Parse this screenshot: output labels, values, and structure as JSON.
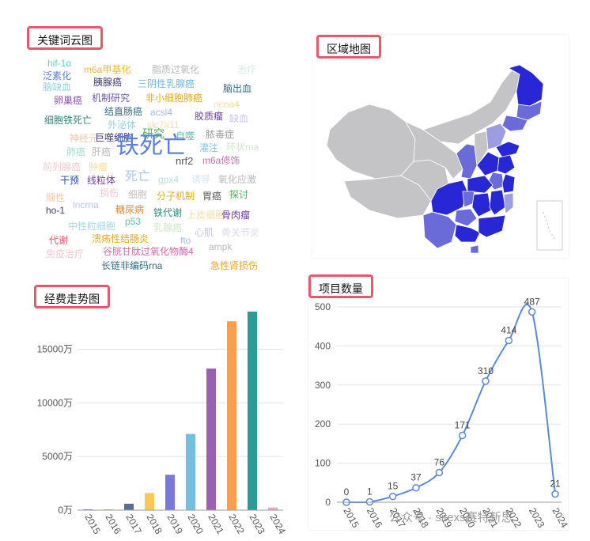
{
  "titles": {
    "wordcloud": "关键词云图",
    "map": "区域地图",
    "funding": "经费走势图",
    "projects": "项目数量"
  },
  "wordcloud": [
    {
      "text": "hif-1α",
      "color": "#5fd4b6",
      "size": 12
    },
    {
      "text": "m6a甲基化",
      "color": "#f2b533",
      "size": 12
    },
    {
      "text": "脂质过氧化",
      "color": "#b7b7b7",
      "size": 12
    },
    {
      "text": "治疗",
      "color": "#cfeee0",
      "size": 12
    },
    {
      "text": "泛素化",
      "color": "#5b7fd6",
      "size": 12
    },
    {
      "text": "胰腺癌",
      "color": "#3c3c6e",
      "size": 12
    },
    {
      "text": "脑缺血",
      "color": "#8fd3d9",
      "size": 12
    },
    {
      "text": "三阴性乳腺癌",
      "color": "#6bb8e6",
      "size": 12
    },
    {
      "text": "脑出血",
      "color": "#2d6f89",
      "size": 12
    },
    {
      "text": "卵巢癌",
      "color": "#8c4fb5",
      "size": 12
    },
    {
      "text": "机制研究",
      "color": "#6c5da6",
      "size": 12
    },
    {
      "text": "非小细胞肺癌",
      "color": "#e6a81e",
      "size": 12
    },
    {
      "text": "ncoa4",
      "color": "#f8dca0",
      "size": 12
    },
    {
      "text": "结直肠癌",
      "color": "#2f6f8a",
      "size": 12
    },
    {
      "text": "acsl4",
      "color": "#a5b8e8",
      "size": 12
    },
    {
      "text": "胶质瘤",
      "color": "#6b3fa0",
      "size": 12
    },
    {
      "text": "缺血",
      "color": "#c9c1ee",
      "size": 12
    },
    {
      "text": "细胞铁死亡",
      "color": "#2e8a7d",
      "size": 12
    },
    {
      "text": "外泌体",
      "color": "#8fd3e8",
      "size": 12
    },
    {
      "text": "slc7a11",
      "color": "#f7df9b",
      "size": 12
    },
    {
      "text": "神经元",
      "color": "#f7c5a8",
      "size": 12
    },
    {
      "text": "巨噬细胞",
      "color": "#3c3c6e",
      "size": 12
    },
    {
      "text": "研究",
      "color": "#4db35e",
      "size": 14
    },
    {
      "text": "自噬",
      "color": "#5bc0a7",
      "size": 12
    },
    {
      "text": "脓毒症",
      "color": "#9a9a9a",
      "size": 12
    },
    {
      "text": "肺癌",
      "color": "#9fded0",
      "size": 12
    },
    {
      "text": "肝癌",
      "color": "#b8b8b8",
      "size": 12
    },
    {
      "text": "铁死亡",
      "color": "#5b7fd6",
      "size": 30
    },
    {
      "text": "灌注",
      "color": "#7fc8e8",
      "size": 12
    },
    {
      "text": "环状rna",
      "color": "#cde7c6",
      "size": 12
    },
    {
      "text": "前列腺癌",
      "color": "#f5c8d0",
      "size": 12
    },
    {
      "text": "肿瘤",
      "color": "#f8dca0",
      "size": 12
    },
    {
      "text": "nrf2",
      "color": "#555555",
      "size": 13
    },
    {
      "text": "m6a修饰",
      "color": "#d46aa6",
      "size": 12
    },
    {
      "text": "干预",
      "color": "#2d4f9a",
      "size": 12
    },
    {
      "text": "线粒体",
      "color": "#6b3fa0",
      "size": 12
    },
    {
      "text": "死亡",
      "color": "#a5c8f0",
      "size": 16
    },
    {
      "text": "gpx4",
      "color": "#b8e0d0",
      "size": 12
    },
    {
      "text": "诱导",
      "color": "#cfe3f2",
      "size": 12
    },
    {
      "text": "氧化应激",
      "color": "#b8b8b8",
      "size": 12
    },
    {
      "text": "顺性",
      "color": "#f7c5a8",
      "size": 12
    },
    {
      "text": "损伤",
      "color": "#f5c8d0",
      "size": 12
    },
    {
      "text": "细胞",
      "color": "#c0c0c0",
      "size": 12
    },
    {
      "text": "分子机制",
      "color": "#e6a81e",
      "size": 12
    },
    {
      "text": "胃癌",
      "color": "#555555",
      "size": 12
    },
    {
      "text": "探讨",
      "color": "#4db35e",
      "size": 12
    },
    {
      "text": "ho-1",
      "color": "#3c3c6e",
      "size": 12
    },
    {
      "text": "lncrna",
      "color": "#b8c5ee",
      "size": 12
    },
    {
      "text": "糖尿病",
      "color": "#e38a3c",
      "size": 12
    },
    {
      "text": "铁代谢",
      "color": "#2e8a7d",
      "size": 12
    },
    {
      "text": "上皮细胞",
      "color": "#f8dca0",
      "size": 12
    },
    {
      "text": "骨肉瘤",
      "color": "#6b3fa0",
      "size": 12
    },
    {
      "text": "中性粒细胞",
      "color": "#a5d8e8",
      "size": 12
    },
    {
      "text": "p53",
      "color": "#5bc0a7",
      "size": 12
    },
    {
      "text": "乳腺癌",
      "color": "#cde7c6",
      "size": 12
    },
    {
      "text": "代谢",
      "color": "#e25a6b",
      "size": 12
    },
    {
      "text": "溃疡性结肠炎",
      "color": "#e6a81e",
      "size": 12
    },
    {
      "text": "心肌",
      "color": "#c9c1ee",
      "size": 12
    },
    {
      "text": "骨关节炎",
      "color": "#d8d8f0",
      "size": 12
    },
    {
      "text": "fto",
      "color": "#a5b8e8",
      "size": 12
    },
    {
      "text": "ampk",
      "color": "#b8b8b8",
      "size": 12
    },
    {
      "text": "免疫治疗",
      "color": "#f5c8d0",
      "size": 12
    },
    {
      "text": "谷胱甘肽过氧化物酶4",
      "color": "#d46aa6",
      "size": 12
    },
    {
      "text": "长链非编码rna",
      "color": "#2d6f89",
      "size": 12
    },
    {
      "text": "急性肾损伤",
      "color": "#e6a81e",
      "size": 12
    }
  ],
  "map_colors": {
    "none": "#c4c4c6",
    "low": "#9c9ce2",
    "mid": "#6a6ad8",
    "high": "#2727d6"
  },
  "chart_data": [
    {
      "type": "bar",
      "categories": [
        "2015",
        "2016",
        "2017",
        "2018",
        "2019",
        "2020",
        "2021",
        "2022",
        "2023",
        "2024"
      ],
      "values": [
        0,
        0,
        600,
        1600,
        3300,
        7100,
        13200,
        17600,
        18500,
        250
      ],
      "colors": [
        "#5470c6",
        "#91cc75",
        "#5b6e96",
        "#fac858",
        "#7b78d8",
        "#73c0de",
        "#9a60b4",
        "#fc9e4e",
        "#2e9a97",
        "#f5a6c6"
      ],
      "ylim": [
        0,
        18500
      ],
      "yticks": [
        "0万",
        "5000万",
        "10000万",
        "15000万"
      ],
      "ytick_values": [
        0,
        5000,
        10000,
        15000
      ],
      "grid": true
    },
    {
      "type": "line",
      "categories": [
        "2015",
        "2016",
        "2017",
        "2018",
        "2019",
        "2020",
        "2021",
        "2022",
        "2023",
        "2024"
      ],
      "values": [
        0,
        1,
        15,
        37,
        76,
        171,
        310,
        414,
        487,
        21
      ],
      "labels": [
        "0",
        "1",
        "15",
        "37",
        "76",
        "171",
        "310",
        "414",
        "487",
        "21"
      ],
      "color": "#5b8ad8",
      "ylim": [
        0,
        500
      ],
      "yticks": [
        "0",
        "100",
        "200",
        "300",
        "400",
        "500"
      ],
      "ytick_values": [
        0,
        100,
        200,
        300,
        400,
        500
      ],
      "grid": true
    }
  ],
  "watermark": {
    "text": "公众号 · sitexs赛特新思"
  }
}
